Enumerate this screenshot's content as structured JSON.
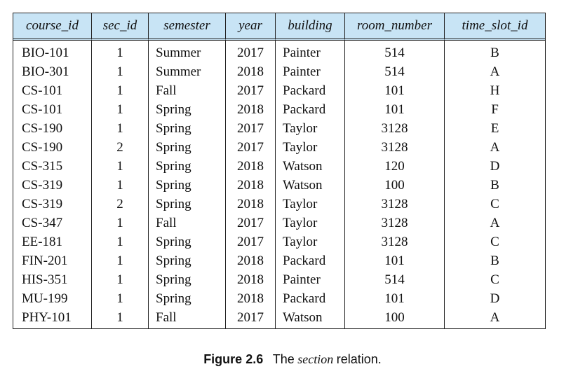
{
  "table": {
    "columns": [
      "course_id",
      "sec_id",
      "semester",
      "year",
      "building",
      "room_number",
      "time_slot_id"
    ],
    "rows": [
      [
        "BIO-101",
        "1",
        "Summer",
        "2017",
        "Painter",
        "514",
        "B"
      ],
      [
        "BIO-301",
        "1",
        "Summer",
        "2018",
        "Painter",
        "514",
        "A"
      ],
      [
        "CS-101",
        "1",
        "Fall",
        "2017",
        "Packard",
        "101",
        "H"
      ],
      [
        "CS-101",
        "1",
        "Spring",
        "2018",
        "Packard",
        "101",
        "F"
      ],
      [
        "CS-190",
        "1",
        "Spring",
        "2017",
        "Taylor",
        "3128",
        "E"
      ],
      [
        "CS-190",
        "2",
        "Spring",
        "2017",
        "Taylor",
        "3128",
        "A"
      ],
      [
        "CS-315",
        "1",
        "Spring",
        "2018",
        "Watson",
        "120",
        "D"
      ],
      [
        "CS-319",
        "1",
        "Spring",
        "2018",
        "Watson",
        "100",
        "B"
      ],
      [
        "CS-319",
        "2",
        "Spring",
        "2018",
        "Taylor",
        "3128",
        "C"
      ],
      [
        "CS-347",
        "1",
        "Fall",
        "2017",
        "Taylor",
        "3128",
        "A"
      ],
      [
        "EE-181",
        "1",
        "Spring",
        "2017",
        "Taylor",
        "3128",
        "C"
      ],
      [
        "FIN-201",
        "1",
        "Spring",
        "2018",
        "Packard",
        "101",
        "B"
      ],
      [
        "HIS-351",
        "1",
        "Spring",
        "2018",
        "Painter",
        "514",
        "C"
      ],
      [
        "MU-199",
        "1",
        "Spring",
        "2018",
        "Packard",
        "101",
        "D"
      ],
      [
        "PHY-101",
        "1",
        "Fall",
        "2017",
        "Watson",
        "100",
        "A"
      ]
    ],
    "header_color": "#c8e4f5"
  },
  "caption": {
    "label": "Figure 2.6",
    "text_before": "The",
    "italic_word": "section",
    "text_after": "relation."
  }
}
